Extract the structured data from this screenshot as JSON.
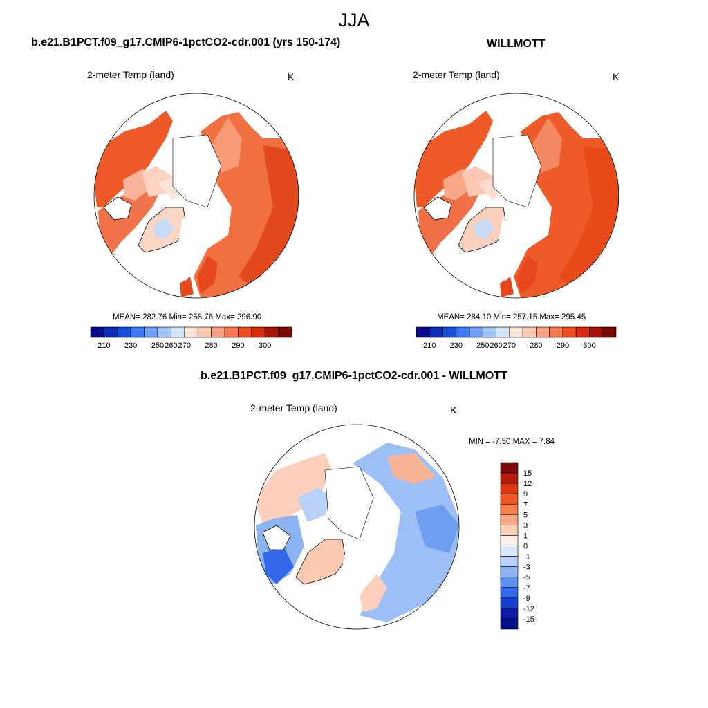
{
  "title": "JJA",
  "panels": [
    {
      "title": "b.e21.B1PCT.f09_g17.CMIP6-1pctCO2-cdr.001 (yrs 150-174)",
      "variable": "2-meter Temp (land)",
      "units": "K",
      "stats": "MEAN= 282.76  Min= 258.76  Max= 296.90"
    },
    {
      "title": "WILLMOTT",
      "variable": "2-meter Temp (land)",
      "units": "K",
      "stats": "MEAN= 284.10  Min= 257.15  Max= 295.45"
    },
    {
      "title": "b.e21.B1PCT.f09_g17.CMIP6-1pctCO2-cdr.001 - WILLMOTT",
      "variable": "2-meter Temp (land)",
      "units": "K",
      "stats": "MIN =  -7.50 MAX =   7.84"
    }
  ],
  "abs_colorbar": {
    "labels": [
      "210",
      "230",
      "250",
      "260",
      "270",
      "280",
      "290",
      "300"
    ],
    "colors": [
      "#0a0a8c",
      "#0a2eb4",
      "#1450dc",
      "#3c78f0",
      "#6e9ef5",
      "#a0c3fa",
      "#d2e4fc",
      "#fde6d8",
      "#fbc8b0",
      "#f8a082",
      "#f4784f",
      "#ee4a1e",
      "#d62e0a",
      "#a51505",
      "#7a0a05"
    ]
  },
  "diff_colorbar": {
    "labels": [
      "15",
      "12",
      "9",
      "7",
      "5",
      "3",
      "1",
      "0",
      "-1",
      "-3",
      "-5",
      "-7",
      "-9",
      "-12",
      "-15"
    ],
    "colors": [
      "#7a0a05",
      "#b51c08",
      "#dc3a0e",
      "#f05a23",
      "#f6804e",
      "#f9a882",
      "#fccfb8",
      "#fdf0e8",
      "#dce9fb",
      "#b8d2f7",
      "#8cb4f3",
      "#5e8ff0",
      "#3366e8",
      "#1440d2",
      "#0a1ea8",
      "#05108a"
    ]
  }
}
